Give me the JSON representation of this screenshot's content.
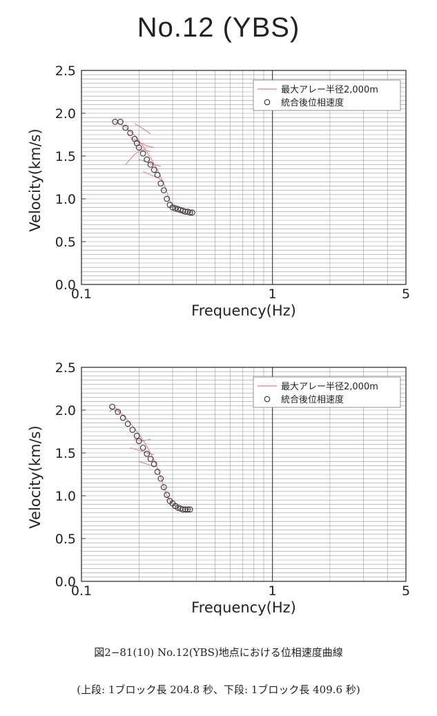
{
  "page_title": "No.12 (YBS)",
  "caption": {
    "main": "図2−81(10) No.12(YBS)地点における位相速度曲線",
    "sub": "(上段: 1ブロック長 204.8 秒、下段: 1ブロック長 409.6 秒)"
  },
  "colors": {
    "axis": "#333333",
    "grid": "#9a9a9a",
    "array_line": "#e07a85",
    "marker": "#333333"
  },
  "chart_data": [
    {
      "type": "scatter",
      "xscale": "log",
      "xlim": [
        0.1,
        5
      ],
      "ylim": [
        0.0,
        2.5
      ],
      "xticks": [
        "0.1",
        "1",
        "5"
      ],
      "xtick_values": [
        0.1,
        1,
        5
      ],
      "yticks": [
        "0.0",
        "0.5",
        "1.0",
        "1.5",
        "2.0",
        "2.5"
      ],
      "ytick_values": [
        0.0,
        0.5,
        1.0,
        1.5,
        2.0,
        2.5
      ],
      "xlabel": "Frequency(Hz)",
      "ylabel": "Velocity(km/s)",
      "grid": true,
      "legend_position": "top-right",
      "series": [
        {
          "name": "最大アレー半径2,000m",
          "kind": "line",
          "lines": [
            {
              "x": [
                0.19,
                0.21,
                0.23
              ],
              "y": [
                1.88,
                1.82,
                1.76
              ]
            },
            {
              "x": [
                0.18,
                0.2,
                0.22,
                0.24
              ],
              "y": [
                1.72,
                1.66,
                1.62,
                1.6
              ]
            },
            {
              "x": [
                0.17,
                0.19,
                0.21,
                0.23
              ],
              "y": [
                1.4,
                1.52,
                1.58,
                1.55
              ]
            },
            {
              "x": [
                0.2,
                0.22,
                0.24,
                0.26
              ],
              "y": [
                1.46,
                1.43,
                1.4,
                1.38
              ]
            },
            {
              "x": [
                0.21,
                0.23,
                0.25,
                0.27
              ],
              "y": [
                1.32,
                1.28,
                1.25,
                1.2
              ]
            },
            {
              "x": [
                0.15,
                0.17,
                0.19,
                0.21,
                0.23,
                0.25,
                0.27,
                0.29,
                0.31,
                0.34,
                0.38
              ],
              "y": [
                1.9,
                1.84,
                1.74,
                1.62,
                1.48,
                1.34,
                1.18,
                0.98,
                0.89,
                0.85,
                0.84
              ]
            }
          ]
        },
        {
          "name": "統合後位相速度",
          "kind": "markers",
          "x": [
            0.15,
            0.16,
            0.17,
            0.18,
            0.19,
            0.195,
            0.2,
            0.21,
            0.22,
            0.23,
            0.24,
            0.25,
            0.26,
            0.27,
            0.28,
            0.29,
            0.3,
            0.31,
            0.32,
            0.33,
            0.34,
            0.35,
            0.36,
            0.37,
            0.38
          ],
          "y": [
            1.9,
            1.9,
            1.83,
            1.77,
            1.7,
            1.65,
            1.6,
            1.53,
            1.46,
            1.4,
            1.34,
            1.28,
            1.18,
            1.1,
            1.0,
            0.93,
            0.9,
            0.89,
            0.88,
            0.87,
            0.86,
            0.85,
            0.85,
            0.84,
            0.84
          ]
        }
      ]
    },
    {
      "type": "scatter",
      "xscale": "log",
      "xlim": [
        0.1,
        5
      ],
      "ylim": [
        0.0,
        2.5
      ],
      "xticks": [
        "0.1",
        "1",
        "5"
      ],
      "xtick_values": [
        0.1,
        1,
        5
      ],
      "yticks": [
        "0.0",
        "0.5",
        "1.0",
        "1.5",
        "2.0",
        "2.5"
      ],
      "ytick_values": [
        0.0,
        0.5,
        1.0,
        1.5,
        2.0,
        2.5
      ],
      "xlabel": "Frequency(Hz)",
      "ylabel": "Velocity(km/s)",
      "grid": true,
      "legend_position": "top-right",
      "series": [
        {
          "name": "最大アレー半径2,000m",
          "kind": "line",
          "lines": [
            {
              "x": [
                0.14,
                0.15,
                0.16
              ],
              "y": [
                1.98,
                2.03,
                1.97
              ]
            },
            {
              "x": [
                0.19,
                0.21,
                0.23
              ],
              "y": [
                1.66,
                1.64,
                1.66
              ]
            },
            {
              "x": [
                0.18,
                0.2,
                0.22,
                0.24
              ],
              "y": [
                1.56,
                1.53,
                1.5,
                1.48
              ]
            },
            {
              "x": [
                0.2,
                0.22,
                0.24
              ],
              "y": [
                1.4,
                1.37,
                1.34
              ]
            },
            {
              "x": [
                0.14,
                0.16,
                0.18,
                0.2,
                0.22,
                0.24,
                0.26,
                0.28,
                0.3,
                0.33,
                0.37
              ],
              "y": [
                2.03,
                1.97,
                1.85,
                1.72,
                1.58,
                1.42,
                1.22,
                1.0,
                0.9,
                0.85,
                0.84
              ]
            }
          ]
        },
        {
          "name": "統合後位相速度",
          "kind": "markers",
          "x": [
            0.145,
            0.155,
            0.165,
            0.175,
            0.185,
            0.195,
            0.2,
            0.21,
            0.22,
            0.23,
            0.24,
            0.25,
            0.26,
            0.27,
            0.28,
            0.29,
            0.3,
            0.31,
            0.32,
            0.33,
            0.34,
            0.35,
            0.36,
            0.37
          ],
          "y": [
            2.04,
            1.98,
            1.91,
            1.84,
            1.77,
            1.7,
            1.64,
            1.56,
            1.49,
            1.43,
            1.37,
            1.28,
            1.2,
            1.1,
            1.01,
            0.94,
            0.91,
            0.88,
            0.86,
            0.85,
            0.84,
            0.84,
            0.84,
            0.84
          ]
        }
      ]
    }
  ]
}
